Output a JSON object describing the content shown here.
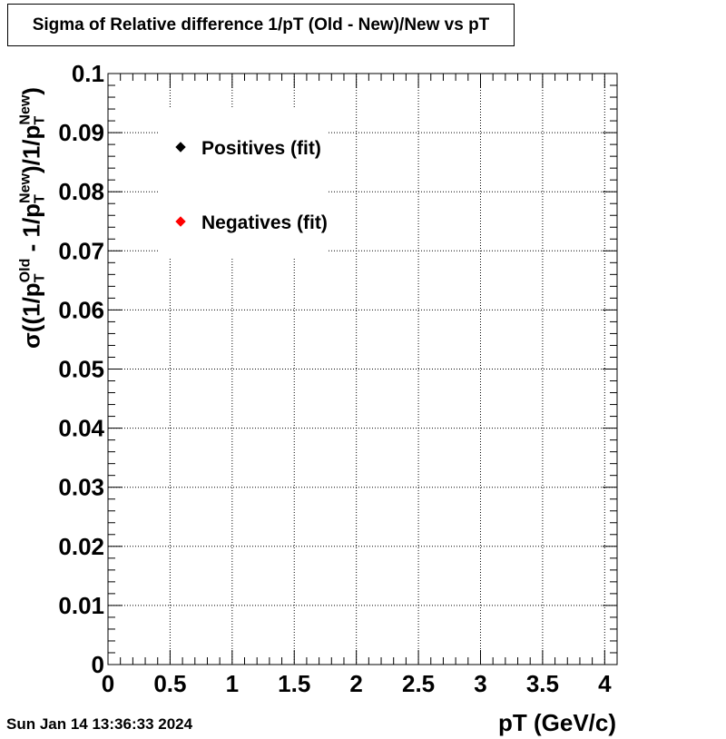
{
  "title": "Sigma of Relative difference 1/pT (Old - New)/New vs pT",
  "datestamp": "Sun Jan 14 13:36:33 2024",
  "chart_data": {
    "type": "scatter",
    "xlabel": "pT (GeV/c)",
    "ylabel": {
      "sigma": "σ",
      "open": "((1/p",
      "sub": "T",
      "sup_old": "Old",
      "mid": " - 1/p",
      "sup_new": "New",
      "close": ")/1/p",
      "end": ")"
    },
    "xlim": [
      0,
      4.1
    ],
    "ylim": [
      0,
      0.1
    ],
    "x_ticks": [
      "0",
      "0.5",
      "1",
      "1.5",
      "2",
      "2.5",
      "3",
      "3.5",
      "4"
    ],
    "y_ticks": [
      "0",
      "0.01",
      "0.02",
      "0.03",
      "0.04",
      "0.05",
      "0.06",
      "0.07",
      "0.08",
      "0.09",
      "0.1"
    ],
    "grid": true,
    "legend_position": "top-left",
    "series": [
      {
        "name": "Positives (fit)",
        "color": "#000000",
        "marker": "diamond",
        "points": []
      },
      {
        "name": "Negatives (fit)",
        "color": "#ff0000",
        "marker": "diamond",
        "points": []
      }
    ]
  }
}
